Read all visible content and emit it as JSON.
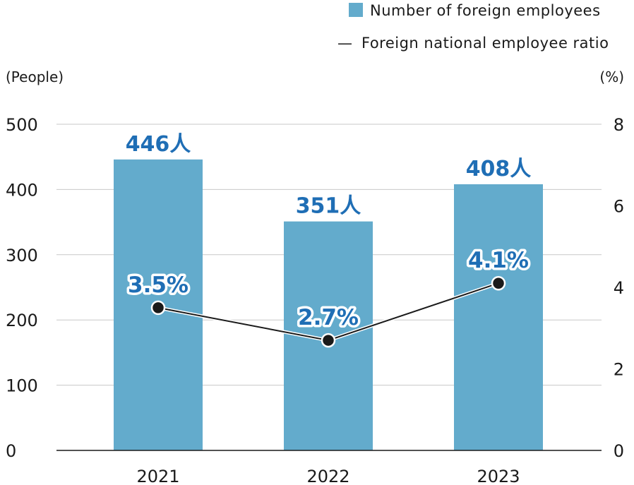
{
  "chart_data": {
    "type": "bar",
    "categories": [
      "2021",
      "2022",
      "2023"
    ],
    "series": [
      {
        "name": "Number of foreign employees",
        "type": "bar",
        "axis": "left",
        "values": [
          446,
          351,
          408
        ],
        "value_labels": [
          "446人",
          "351人",
          "408人"
        ],
        "color": "#63abcc"
      },
      {
        "name": "Foreign national employee ratio",
        "type": "line",
        "axis": "right",
        "values": [
          3.5,
          2.7,
          4.1
        ],
        "value_labels": [
          "3.5%",
          "2.7%",
          "4.1%"
        ],
        "color": "#1a1a1a"
      }
    ],
    "left_axis": {
      "unit": "(People)",
      "ylim": [
        0,
        500
      ],
      "ticks": [
        "0",
        "100",
        "200",
        "300",
        "400",
        "500"
      ]
    },
    "right_axis": {
      "unit": "(%)",
      "ylim": [
        0,
        8
      ],
      "ticks": [
        "0",
        "2",
        "4",
        "6",
        "8"
      ]
    },
    "grid": true,
    "legend_position": "top-right",
    "legend_line_symbol": "—",
    "label_color": "#1f6eb5"
  }
}
